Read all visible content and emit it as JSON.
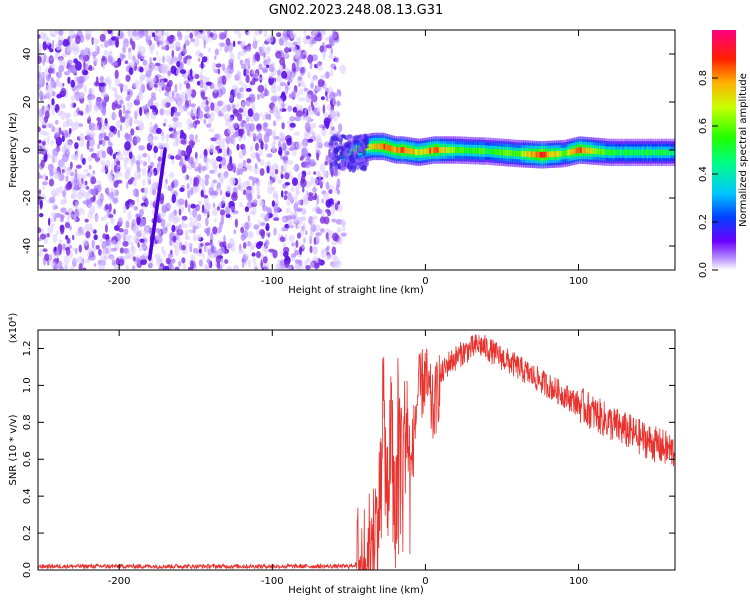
{
  "title": "GN02.2023.248.08.13.G31",
  "colors": {
    "snr_line": "#e8322e",
    "spectrogram_noise": "#7a2ee0",
    "axis": "#000000"
  },
  "chart_data": [
    {
      "type": "heatmap",
      "xlabel": "Height of straight line (km)",
      "ylabel": "Frequency (Hz)",
      "xlim": [
        -253,
        163
      ],
      "ylim": [
        -50,
        50
      ],
      "x_ticks": [
        -200,
        -100,
        0,
        100
      ],
      "y_ticks": [
        -40,
        -20,
        0,
        20,
        40
      ],
      "colorbar": {
        "label": "Normalized spectral amplitude",
        "range": [
          0,
          1
        ],
        "ticks": [
          0.0,
          0.2,
          0.4,
          0.6,
          0.8
        ],
        "colormap": "rainbow (violet-blue-cyan-green-yellow-red-magenta)"
      },
      "features": {
        "noise_region_x": [
          -253,
          -55
        ],
        "signal_band_x": [
          -55,
          163
        ],
        "signal_center_freq_hz": 0,
        "signal_halfwidth_hz": 3,
        "signal_peak_amplitude": 0.9,
        "signal_track_points": [
          {
            "x": -55,
            "f": -3,
            "amp": 0.35
          },
          {
            "x": -45,
            "f": 0,
            "amp": 0.55
          },
          {
            "x": -35,
            "f": 1.5,
            "amp": 0.7
          },
          {
            "x": -28,
            "f": 1.5,
            "amp": 0.85
          },
          {
            "x": -20,
            "f": 0,
            "amp": 0.8
          },
          {
            "x": -15,
            "f": 0,
            "amp": 0.85
          },
          {
            "x": -5,
            "f": -1,
            "amp": 0.7
          },
          {
            "x": 5,
            "f": 0,
            "amp": 0.85
          },
          {
            "x": 20,
            "f": 0,
            "amp": 0.6
          },
          {
            "x": 40,
            "f": -0.5,
            "amp": 0.55
          },
          {
            "x": 60,
            "f": -1.5,
            "amp": 0.6
          },
          {
            "x": 75,
            "f": -2,
            "amp": 0.9
          },
          {
            "x": 90,
            "f": -1.5,
            "amp": 0.6
          },
          {
            "x": 100,
            "f": 0,
            "amp": 0.85
          },
          {
            "x": 120,
            "f": -1,
            "amp": 0.5
          },
          {
            "x": 140,
            "f": -1,
            "amp": 0.5
          },
          {
            "x": 163,
            "f": -1,
            "amp": 0.5
          }
        ]
      }
    },
    {
      "type": "line",
      "xlabel": "Height of straight line (km)",
      "ylabel": "SNR (10 * v/v)",
      "y_scale_label": "(x10⁴)",
      "xlim": [
        -253,
        163
      ],
      "ylim": [
        0,
        1.3
      ],
      "x_ticks": [
        -200,
        -100,
        0,
        100
      ],
      "y_ticks": [
        0.0,
        0.2,
        0.4,
        0.6,
        0.8,
        1.0,
        1.2
      ],
      "series": [
        {
          "x": [
            -253,
            -200,
            -100,
            -50,
            -40,
            -35,
            -30,
            -28,
            -25,
            -22,
            -20,
            -18,
            -15,
            -12,
            -10,
            -5,
            0,
            5,
            10,
            15,
            20,
            25,
            30,
            35,
            40,
            50,
            60,
            70,
            80,
            90,
            100,
            110,
            120,
            130,
            140,
            150,
            163
          ],
          "y": [
            0.02,
            0.02,
            0.02,
            0.02,
            0.04,
            0.1,
            0.35,
            0.95,
            0.4,
            0.8,
            0.2,
            0.9,
            0.6,
            0.85,
            0.5,
            0.95,
            1.05,
            0.85,
            1.05,
            1.12,
            1.15,
            1.18,
            1.2,
            1.22,
            1.2,
            1.15,
            1.1,
            1.05,
            1.0,
            0.95,
            0.9,
            0.85,
            0.8,
            0.76,
            0.72,
            0.68,
            0.64
          ]
        }
      ]
    }
  ]
}
